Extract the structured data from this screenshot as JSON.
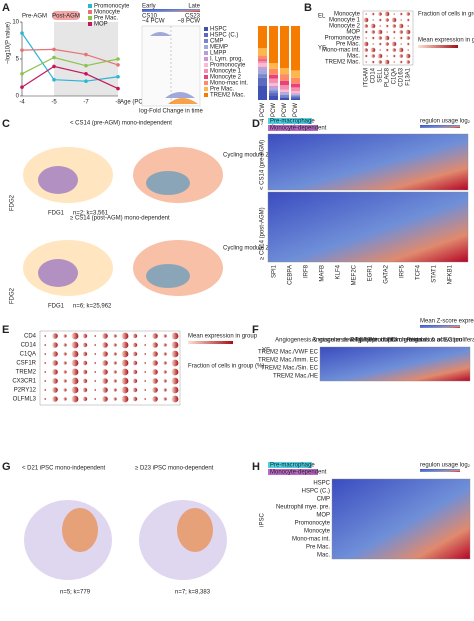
{
  "chart_data": [
    {
      "type": "line",
      "title": "Pre-AGM",
      "badge": "Post-AGM",
      "x_label": "Age (PCW)",
      "y_label": "−log10(P value)",
      "categories": [
        "-4",
        "-5",
        "-7",
        "-8"
      ],
      "ylim": [
        0,
        10
      ],
      "yticks": [
        0,
        5,
        10
      ],
      "series": [
        {
          "name": "Promonocyte",
          "color": "#29b6d6",
          "values": [
            8.5,
            2.2,
            2.0,
            2.6
          ]
        },
        {
          "name": "Monocyte",
          "color": "#e57373",
          "values": [
            6.2,
            6.3,
            5.6,
            4.2
          ]
        },
        {
          "name": "Pre Mac.",
          "color": "#8bc34a",
          "values": [
            3.0,
            5.2,
            4.1,
            5.0
          ]
        },
        {
          "name": "MOP",
          "color": "#c2185b",
          "values": [
            1.2,
            4.0,
            3.0,
            1.0
          ]
        }
      ]
    },
    {
      "type": "stacked-bar",
      "categories": [
        "~4 PCW",
        "~5 PCW",
        "~7 PCW",
        "~8 PCW"
      ],
      "ylim": [
        0,
        100
      ],
      "series": [
        {
          "name": "HSPC",
          "color": "#3f51b5",
          "values": [
            20,
            6,
            3,
            2
          ]
        },
        {
          "name": "HSPC (C.)",
          "color": "#5c6bc0",
          "values": [
            10,
            4,
            2,
            2
          ]
        },
        {
          "name": "CMP",
          "color": "#7986cb",
          "values": [
            5,
            3,
            2,
            2
          ]
        },
        {
          "name": "MEMP",
          "color": "#9fa8da",
          "values": [
            5,
            2,
            2,
            1
          ]
        },
        {
          "name": "LMPP",
          "color": "#b39ddb",
          "values": [
            3,
            2,
            1,
            1
          ]
        },
        {
          "name": "I. Lym. prog.",
          "color": "#ce93d8",
          "values": [
            2,
            2,
            1,
            1
          ]
        },
        {
          "name": "Promonocyte",
          "color": "#f8bbd0",
          "values": [
            5,
            4,
            3,
            3
          ]
        },
        {
          "name": "Monocyte 1",
          "color": "#f48fb1",
          "values": [
            3,
            6,
            6,
            5
          ]
        },
        {
          "name": "Monocyte 2",
          "color": "#ec407a",
          "values": [
            2,
            5,
            6,
            5
          ]
        },
        {
          "name": "Mono-mac int.",
          "color": "#ff8a65",
          "values": [
            5,
            8,
            9,
            8
          ]
        },
        {
          "name": "Pre Mac.",
          "color": "#ffb74d",
          "values": [
            10,
            8,
            8,
            10
          ]
        },
        {
          "name": "TREM2 Mac.",
          "color": "#f57c00",
          "values": [
            30,
            50,
            57,
            60
          ]
        }
      ]
    }
  ],
  "panel_a": {
    "letter": "A",
    "ridge_top": [
      "Early",
      "Late"
    ],
    "ridge_stage": [
      "CS10",
      "CS23"
    ],
    "ridge_age": [
      "~4 PCW",
      "~8 PCW"
    ],
    "ridge_x_label": "log-Fold Change in time"
  },
  "panel_b": {
    "letter": "B",
    "groups": [
      "EL",
      "YS"
    ],
    "rows": [
      "Monocyte",
      "Monocyte 1",
      "Monocyte 2",
      "MOP",
      "Promonocyte",
      "Pre Mac.",
      "Mono-mac int.",
      "Mac.",
      "TREM2 Mac."
    ],
    "cols": [
      "ITGAM",
      "CD14",
      "SELL",
      "PLAC8",
      "C1QA",
      "CD163",
      "F13A1"
    ],
    "legend": [
      "Fraction of cells in group (%)",
      "Mean expression in group"
    ]
  },
  "panel_c": {
    "letter": "C",
    "top": "< CS14 (pre-AGM) mono-independent",
    "bottom": "≥ CS14 (post-AGM) mono-dependent",
    "score": "Cycling module Z-score",
    "axis": [
      "FDG1",
      "FDG2"
    ],
    "n": [
      "n=2; k=3,561",
      "n=6; k=25,962"
    ]
  },
  "panel_d": {
    "letter": "D",
    "tags": [
      "Pre-macrophage",
      "Monocyte-dependent"
    ],
    "scale": "regulon usage log₂",
    "groups": [
      "< CS14 (pre-AGM)",
      "≥ CS14 (post-AGM)"
    ],
    "cols": [
      "SPI1",
      "CEBPA",
      "IRF8",
      "MAFB",
      "KLF4",
      "MEF2C",
      "EGR1",
      "GATA2",
      "IRF5",
      "TCF4",
      "STAT1",
      "NFKB1"
    ]
  },
  "panel_e": {
    "letter": "E",
    "rows": [
      "CD4",
      "CD14",
      "C1QA",
      "CSF1R",
      "TREM2",
      "CX3CR1",
      "P2RY12",
      "OLFML3"
    ],
    "legend": [
      "Mean expression in group",
      "Fraction of cells in group (%)"
    ]
  },
  "panel_f": {
    "letter": "F",
    "group": "YS",
    "scale": "Mean Z-score expression",
    "headers": [
      "Angiogenesis & vascular development",
      "Angiogenesis & TGFβ production",
      "Regulation of EC migration",
      "Neutrophil chemotaxis & activation",
      "Regulation of EC proliferation"
    ],
    "rows": [
      "TREM2 Mac./VWF EC",
      "TREM2 Mac./Imm. EC",
      "TREM2 Mac./Sin. EC",
      "TREM2 Mac./HE"
    ]
  },
  "panel_g": {
    "letter": "G",
    "left": "< D21 iPSC mono-independent",
    "right": "≥ D23 iPSC mono-dependent",
    "n": [
      "n=5; k=779",
      "n=7; k=8,383"
    ]
  },
  "panel_h": {
    "letter": "H",
    "tags": [
      "Pre-macrophage",
      "Monocyte-dependent"
    ],
    "scale": "regulon usage log₂",
    "group": "iPSC",
    "rows": [
      "HSPC",
      "HSPC (C.)",
      "CMP",
      "Neutrophil mye. pre.",
      "MOP",
      "Promonocyte",
      "Monocyte",
      "Mono-mac int.",
      "Pre Mac.",
      "Mac."
    ]
  }
}
